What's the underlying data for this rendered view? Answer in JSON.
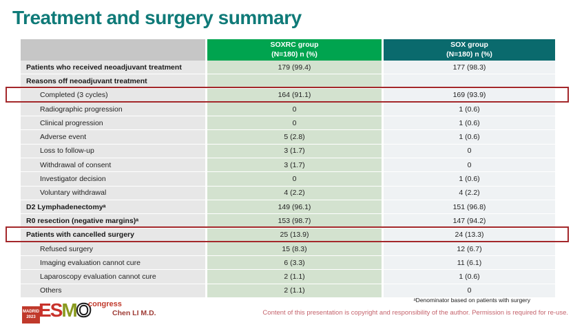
{
  "slide": {
    "title": "Treatment and surgery summary",
    "title_color": "#0F7A78",
    "background": "#FFFFFF"
  },
  "table": {
    "header": {
      "soxrc": {
        "line1": "SOXRC group",
        "line2": "(N=180)  n (%)",
        "bg": "#00A44F"
      },
      "sox": {
        "line1": "SOX group",
        "line2": "(N=180)  n (%)",
        "bg": "#0A6A6D"
      }
    },
    "colors": {
      "label_cell_bg": "#E7E7E7",
      "soxrc_cell_bg": "#D3E2CF",
      "sox_cell_bg": "#EFF2F4",
      "header_blank_bg": "#C6C6C6",
      "highlight_border": "#A3272A"
    },
    "rows": [
      {
        "label": "Patients who received neoadjuvant treatment",
        "soxrc": "179 (99.4)",
        "sox": "177 (98.3)",
        "bold": true,
        "indent": false,
        "highlight": false
      },
      {
        "label": "Reasons off neoadjuvant treatment",
        "soxrc": "",
        "sox": "",
        "bold": true,
        "indent": false,
        "highlight": false
      },
      {
        "label": "Completed (3 cycles)",
        "soxrc": "164 (91.1)",
        "sox": "169 (93.9)",
        "bold": false,
        "indent": true,
        "highlight": true
      },
      {
        "label": "Radiographic progression",
        "soxrc": "0",
        "sox": "1 (0.6)",
        "bold": false,
        "indent": true,
        "highlight": false
      },
      {
        "label": "Clinical progression",
        "soxrc": "0",
        "sox": "1 (0.6)",
        "bold": false,
        "indent": true,
        "highlight": false
      },
      {
        "label": "Adverse event",
        "soxrc": "5 (2.8)",
        "sox": "1 (0.6)",
        "bold": false,
        "indent": true,
        "highlight": false
      },
      {
        "label": "Loss to follow-up",
        "soxrc": "3 (1.7)",
        "sox": "0",
        "bold": false,
        "indent": true,
        "highlight": false
      },
      {
        "label": "Withdrawal of consent",
        "soxrc": "3 (1.7)",
        "sox": "0",
        "bold": false,
        "indent": true,
        "highlight": false
      },
      {
        "label": "Investigator decision",
        "soxrc": "0",
        "sox": "1 (0.6)",
        "bold": false,
        "indent": true,
        "highlight": false
      },
      {
        "label": "Voluntary withdrawal",
        "soxrc": "4 (2.2)",
        "sox": "4 (2.2)",
        "bold": false,
        "indent": true,
        "highlight": false
      },
      {
        "label": "D2 Lymphadenectomyᵃ",
        "soxrc": "149 (96.1)",
        "sox": "151 (96.8)",
        "bold": true,
        "indent": false,
        "highlight": false
      },
      {
        "label": "R0 resection (negative margins)ᵃ",
        "soxrc": "153 (98.7)",
        "sox": "147 (94.2)",
        "bold": true,
        "indent": false,
        "highlight": false
      },
      {
        "label": "Patients with cancelled surgery",
        "soxrc": "25 (13.9)",
        "sox": "24 (13.3)",
        "bold": true,
        "indent": false,
        "highlight": true
      },
      {
        "label": "Refused surgery",
        "soxrc": "15 (8.3)",
        "sox": "12 (6.7)",
        "bold": false,
        "indent": true,
        "highlight": false
      },
      {
        "label": "Imaging evaluation cannot cure",
        "soxrc": "6 (3.3)",
        "sox": "11 (6.1)",
        "bold": false,
        "indent": true,
        "highlight": false
      },
      {
        "label": "Laparoscopy evaluation cannot cure",
        "soxrc": "2 (1.1)",
        "sox": "1 (0.6)",
        "bold": false,
        "indent": true,
        "highlight": false
      },
      {
        "label": "Others",
        "soxrc": "2 (1.1)",
        "sox": "0",
        "bold": false,
        "indent": true,
        "highlight": false
      }
    ]
  },
  "footer": {
    "logo": {
      "city": "MADRID",
      "year": "2023",
      "letters": [
        {
          "char": "E",
          "color": "#C8322B"
        },
        {
          "char": "S",
          "color": "#C8322B"
        },
        {
          "char": "M",
          "color": "#8A9A1F"
        },
        {
          "char": "O",
          "color": "outline"
        }
      ],
      "congress": "congress"
    },
    "author": "Chen LI M.D.",
    "footnote": "ᵃDenominator based on patients with surgery",
    "copyright": "Content of this presentation is copyright and responsibility of the author.  Permission is required for re-use.",
    "copyright_color": "#C4626B"
  }
}
